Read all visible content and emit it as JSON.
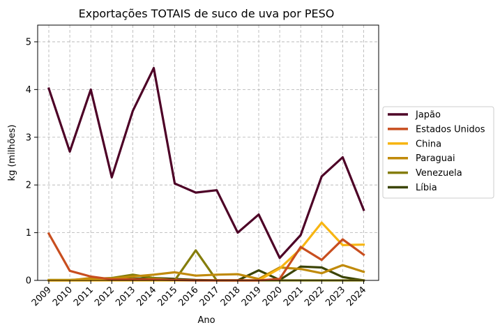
{
  "chart_data": {
    "type": "line",
    "title": "Exportações TOTAIS de suco de uva por PESO",
    "xlabel": "Ano",
    "ylabel": "kg (milhões)",
    "x": [
      "2009",
      "2010",
      "2011",
      "2012",
      "2013",
      "2014",
      "2015",
      "2016",
      "2017",
      "2018",
      "2019",
      "2020",
      "2021",
      "2022",
      "2023",
      "2024"
    ],
    "ylim": [
      0,
      5.35
    ],
    "yticks": [
      "0",
      "1",
      "2",
      "3",
      "4",
      "5"
    ],
    "grid": true,
    "legend_position": "right-outside",
    "series": [
      {
        "name": "Japão",
        "color": "#4d0026",
        "values": [
          4.02,
          2.7,
          4.0,
          2.16,
          3.55,
          4.45,
          2.03,
          1.84,
          1.89,
          1.0,
          1.38,
          0.47,
          0.95,
          2.18,
          2.58,
          1.48
        ]
      },
      {
        "name": "Estados Unidos",
        "color": "#c84e1f",
        "values": [
          0.98,
          0.2,
          0.08,
          0.02,
          0.02,
          0.02,
          0.01,
          0.0,
          0.0,
          0.0,
          0.0,
          0.03,
          0.7,
          0.43,
          0.86,
          0.54
        ]
      },
      {
        "name": "China",
        "color": "#f7b512",
        "values": [
          0.0,
          0.0,
          0.0,
          0.0,
          0.0,
          0.0,
          0.0,
          0.0,
          0.0,
          0.0,
          0.0,
          0.25,
          0.66,
          1.21,
          0.74,
          0.75
        ]
      },
      {
        "name": "Paraguai",
        "color": "#c08a0a",
        "values": [
          0.0,
          0.0,
          0.05,
          0.04,
          0.08,
          0.12,
          0.17,
          0.1,
          0.12,
          0.13,
          0.03,
          0.27,
          0.24,
          0.15,
          0.32,
          0.18
        ]
      },
      {
        "name": "Venezuela",
        "color": "#857d0b",
        "values": [
          0.01,
          0.01,
          0.03,
          0.05,
          0.12,
          0.05,
          0.0,
          0.63,
          0.0,
          0.0,
          0.0,
          0.0,
          0.0,
          0.0,
          0.0,
          0.0
        ]
      },
      {
        "name": "Líbia",
        "color": "#3b4405",
        "values": [
          0.0,
          0.0,
          0.0,
          0.03,
          0.03,
          0.05,
          0.03,
          0.01,
          0.0,
          0.0,
          0.21,
          0.01,
          0.29,
          0.27,
          0.07,
          0.0
        ]
      }
    ]
  }
}
